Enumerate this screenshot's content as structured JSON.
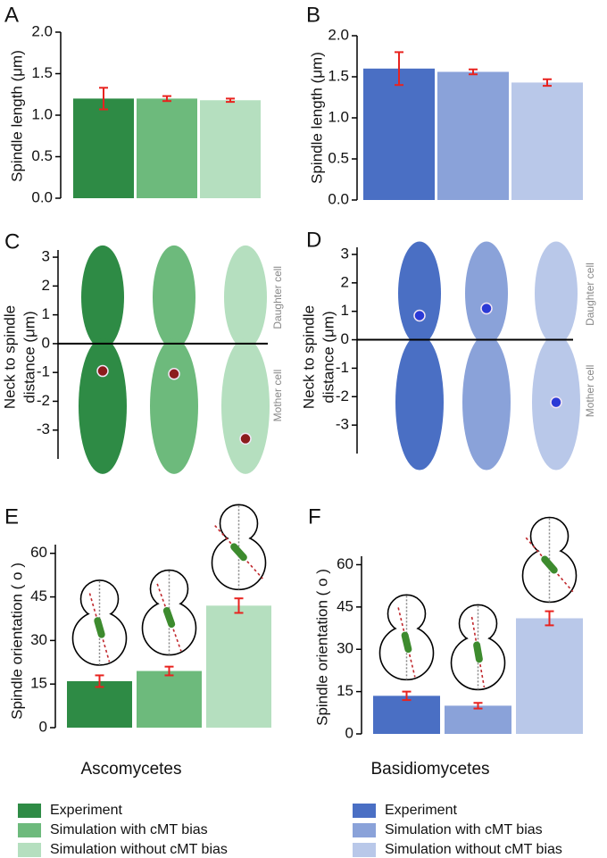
{
  "chart_data": [
    {
      "type": "bar",
      "panel": "A",
      "ylabel": "Spindle length (μm)",
      "values": [
        1.2,
        1.2,
        1.18
      ],
      "errors": [
        0.13,
        0.03,
        0.02
      ],
      "colors": [
        "#2e8b45",
        "#6dba7c",
        "#b5dfbf"
      ],
      "error_color": "#e8231f",
      "ylim": [
        0,
        2
      ],
      "yticks": [
        {
          "value": 0,
          "label": "0.0"
        },
        0.5,
        {
          "value": 1,
          "label": "1.0"
        },
        1.5,
        {
          "value": 2,
          "label": "2.0"
        }
      ]
    },
    {
      "type": "bar",
      "panel": "B",
      "ylabel": "Spindle length (μm)",
      "values": [
        1.6,
        1.56,
        1.43
      ],
      "errors": [
        0.2,
        0.03,
        0.04
      ],
      "colors": [
        "#4a6fc4",
        "#8aa2d9",
        "#b9c8e9"
      ],
      "error_color": "#e8231f",
      "ylim": [
        0,
        2
      ],
      "yticks": [
        {
          "value": 0,
          "label": "0.0"
        },
        0.5,
        {
          "value": 1,
          "label": "1.0"
        },
        1.5,
        {
          "value": 2,
          "label": "2.0"
        }
      ]
    },
    {
      "type": "scatter",
      "panel": "C",
      "ylabel": [
        "Neck to spindle",
        "distance (μm)"
      ],
      "values": [
        -0.95,
        -1.05,
        -3.3
      ],
      "colors": [
        "#2e8b45",
        "#6dba7c",
        "#b5dfbf"
      ],
      "point_color": "#8b1c1c",
      "ylim": [
        -4,
        3.25
      ],
      "yticks": [
        3,
        2,
        1,
        0,
        -1,
        -2,
        -3
      ],
      "annotations": [
        "Daughter cell",
        "Mother cell"
      ]
    },
    {
      "type": "scatter",
      "panel": "D",
      "ylabel": [
        "Neck to spindle",
        "distance (μm)"
      ],
      "values": [
        0.85,
        1.1,
        -2.2
      ],
      "colors": [
        "#4a6fc4",
        "#8aa2d9",
        "#b9c8e9"
      ],
      "point_color": "#2b3ad6",
      "ylim": [
        -4,
        3.25
      ],
      "yticks": [
        3,
        2,
        1,
        0,
        -1,
        -2,
        -3
      ],
      "annotations": [
        "Daughter cell",
        "Mother cell"
      ]
    },
    {
      "type": "bar",
      "panel": "E",
      "ylabel": "Spindle orientation ( o )",
      "values": [
        16,
        19.5,
        42
      ],
      "errors": [
        2,
        1.5,
        2.5
      ],
      "colors": [
        "#2e8b45",
        "#6dba7c",
        "#b5dfbf"
      ],
      "error_color": "#e8231f",
      "ylim": [
        0,
        63
      ],
      "yticks": [
        0,
        15,
        30,
        45,
        60
      ]
    },
    {
      "type": "bar",
      "panel": "F",
      "ylabel": "Spindle orientation ( o )",
      "values": [
        13.5,
        10,
        41
      ],
      "errors": [
        1.5,
        1,
        2.5
      ],
      "colors": [
        "#4a6fc4",
        "#8aa2d9",
        "#b9c8e9"
      ],
      "error_color": "#e8231f",
      "ylim": [
        0,
        63
      ],
      "yticks": [
        0,
        15,
        30,
        45,
        60
      ]
    }
  ],
  "groups": [
    "Ascomycetes",
    "Basidiomycetes"
  ],
  "legends": [
    {
      "entries": [
        {
          "name": "Experiment",
          "color": "#2e8b45"
        },
        {
          "name": "Simulation with cMT bias",
          "color": "#6dba7c"
        },
        {
          "name": "Simulation without cMT bias",
          "color": "#b5dfbf"
        }
      ]
    },
    {
      "entries": [
        {
          "name": "Experiment",
          "color": "#4a6fc4"
        },
        {
          "name": "Simulation with cMT bias",
          "color": "#8aa2d9"
        },
        {
          "name": "Simulation without cMT bias",
          "color": "#b9c8e9"
        }
      ]
    }
  ]
}
